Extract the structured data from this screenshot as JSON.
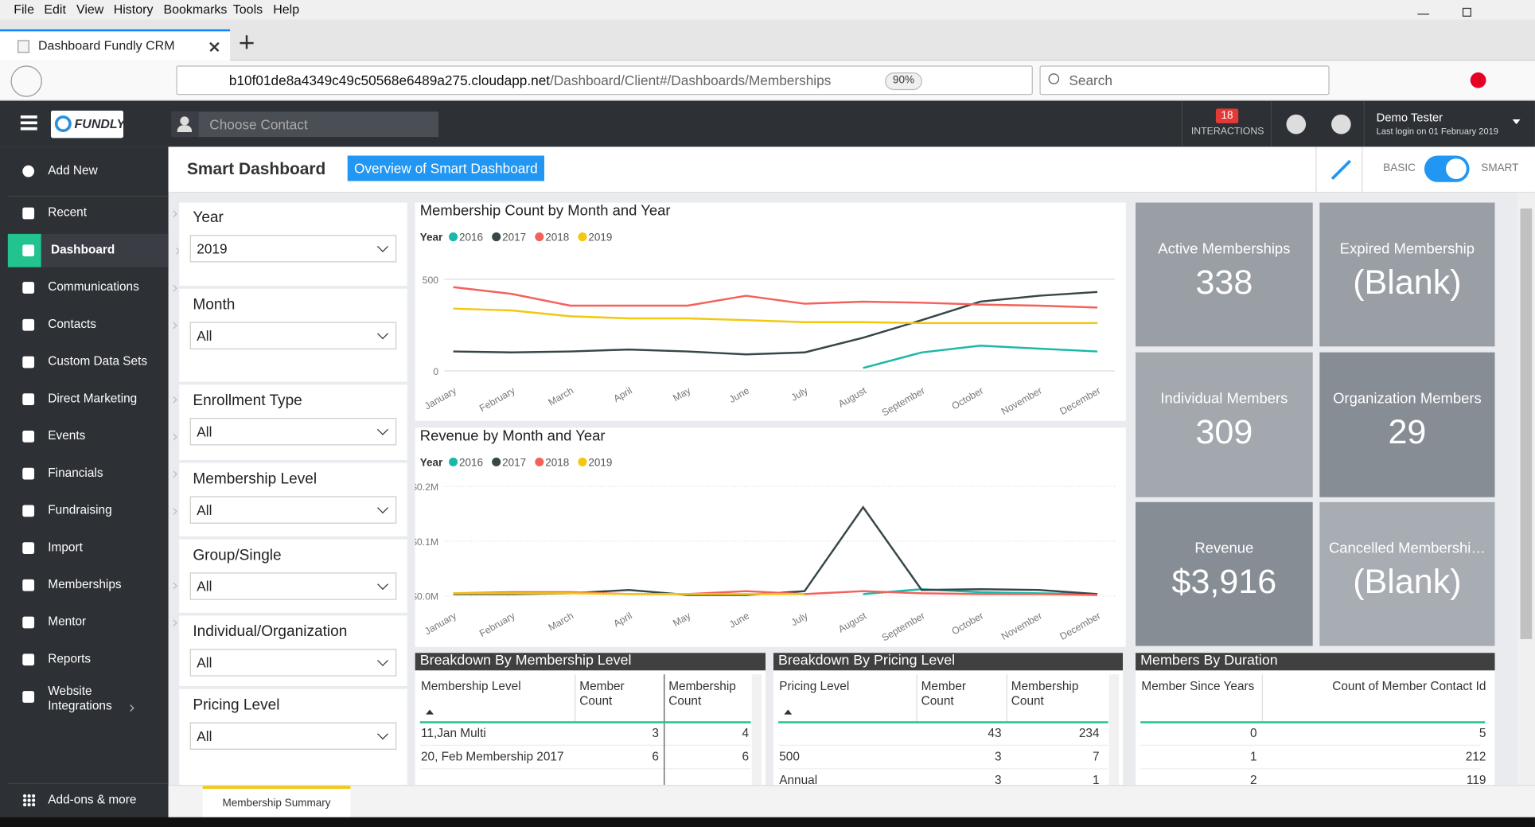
{
  "browser": {
    "menu": [
      "File",
      "Edit",
      "View",
      "History",
      "Bookmarks",
      "Tools",
      "Help"
    ],
    "tab": "Dashboard Fundly CRM",
    "url_host": "b10f01de8a4349c49c50568e6489a275.cloudapp.net",
    "url_path": "/Dashboard/Client#/Dashboards/Memberships",
    "zoom": "90%",
    "search": "Search"
  },
  "app_header": {
    "logo": "FUNDLY",
    "contact_placeholder": "Choose Contact",
    "interactions_count": 18,
    "interactions_label": "INTERACTIONS",
    "user": "Demo Tester",
    "last_login": "Last login on 01 February 2019"
  },
  "sidebar": {
    "items": [
      {
        "label": "Add New",
        "submenu": true
      },
      {
        "label": "Recent",
        "submenu": true
      },
      {
        "label": "Dashboard",
        "submenu": true
      },
      {
        "label": "Communications",
        "submenu": true
      },
      {
        "label": "Contacts",
        "submenu": true
      },
      {
        "label": "Custom Data Sets",
        "submenu": false
      },
      {
        "label": "Direct Marketing",
        "submenu": true
      },
      {
        "label": "Events",
        "submenu": true
      },
      {
        "label": "Financials",
        "submenu": true
      },
      {
        "label": "Fundraising",
        "submenu": true
      },
      {
        "label": "Import",
        "submenu": false
      },
      {
        "label": "Memberships",
        "submenu": true
      },
      {
        "label": "Mentor",
        "submenu": true
      },
      {
        "label": "Reports",
        "submenu": false
      },
      {
        "label": "Website Integrations",
        "submenu": true
      }
    ],
    "active": 2,
    "footer": "Add-ons & more"
  },
  "toolbar": {
    "title": "Smart Dashboard",
    "button": "Overview of Smart Dashboard",
    "basic": "BASIC",
    "smart": "SMART"
  },
  "filters": [
    {
      "label": "Year",
      "value": "2019"
    },
    {
      "label": "Month",
      "value": "All"
    },
    {
      "label": "Enrollment Type",
      "value": "All"
    },
    {
      "label": "Membership Level",
      "value": "All"
    },
    {
      "label": "Group/Single",
      "value": "All"
    },
    {
      "label": "Individual/Organization",
      "value": "All"
    },
    {
      "label": "Pricing Level",
      "value": "All"
    }
  ],
  "chart_data": [
    {
      "type": "line",
      "title": "Membership Count by Month and Year",
      "legend_title": "Year",
      "categories": [
        "January",
        "February",
        "March",
        "April",
        "May",
        "June",
        "July",
        "August",
        "September",
        "October",
        "November",
        "December"
      ],
      "series": [
        {
          "name": "2016",
          "color": "#1ab8a8",
          "values": [
            null,
            null,
            null,
            null,
            null,
            null,
            null,
            16,
            101,
            138,
            122,
            106
          ]
        },
        {
          "name": "2017",
          "color": "#374649",
          "values": [
            106,
            101,
            106,
            117,
            106,
            90,
            101,
            181,
            277,
            378,
            410,
            431
          ]
        },
        {
          "name": "2018",
          "color": "#f2625a",
          "values": [
            457,
            420,
            356,
            356,
            356,
            410,
            367,
            378,
            372,
            362,
            356,
            346
          ]
        },
        {
          "name": "2019",
          "color": "#f2c80f",
          "values": [
            340,
            330,
            298,
            287,
            287,
            277,
            266,
            266,
            261,
            261,
            261,
            261
          ]
        }
      ],
      "ylim": [
        0,
        550
      ],
      "yticks": [
        0,
        500
      ],
      "grid": true
    },
    {
      "type": "line",
      "title": "Revenue by Month and Year",
      "legend_title": "Year",
      "categories": [
        "January",
        "February",
        "March",
        "April",
        "May",
        "June",
        "July",
        "August",
        "September",
        "October",
        "November",
        "December"
      ],
      "series": [
        {
          "name": "2016",
          "color": "#1ab8a8",
          "values": [
            null,
            null,
            null,
            null,
            null,
            null,
            null,
            3600,
            12500,
            7000,
            5000,
            3600
          ]
        },
        {
          "name": "2017",
          "color": "#374649",
          "values": [
            3600,
            3600,
            5000,
            11000,
            2000,
            2000,
            9000,
            162000,
            11000,
            12500,
            11000,
            3600
          ]
        },
        {
          "name": "2018",
          "color": "#f2625a",
          "values": [
            5000,
            7000,
            7000,
            3600,
            3600,
            9000,
            3600,
            9000,
            5000,
            3600,
            3600,
            2000
          ]
        },
        {
          "name": "2019",
          "color": "#f2c80f",
          "values": [
            5000,
            5000,
            5000,
            3600,
            3600,
            3600,
            3600,
            null,
            null,
            null,
            null,
            null
          ]
        }
      ],
      "ylim": [
        0,
        200000
      ],
      "yticks": [
        {
          "value": 0,
          "label": "$0.0M"
        },
        {
          "value": 100000,
          "label": "$0.1M"
        },
        {
          "value": 200000,
          "label": "$0.2M"
        }
      ],
      "grid": true
    }
  ],
  "cards": [
    {
      "label": "Active Memberships",
      "value": "338"
    },
    {
      "label": "Expired Membership",
      "value": "(Blank)"
    },
    {
      "label": "Individual Members",
      "value": "309"
    },
    {
      "label": "Organization Members",
      "value": "29"
    },
    {
      "label": "Revenue",
      "value": "$3,916"
    },
    {
      "label": "Cancelled Membershi…",
      "value": "(Blank)"
    }
  ],
  "tables": [
    {
      "title": "Breakdown By Membership Level",
      "columns": [
        "Membership Level",
        "Member Count",
        "Membership Count"
      ],
      "rows": [
        [
          "11,Jan Multi",
          "3",
          "4"
        ],
        [
          "20, Feb Membership 2017",
          "6",
          "6"
        ]
      ]
    },
    {
      "title": "Breakdown By Pricing Level",
      "columns": [
        "Pricing Level",
        "Member Count",
        "Membership Count"
      ],
      "rows": [
        [
          null,
          "43",
          "234"
        ],
        [
          "500",
          "3",
          "7"
        ],
        [
          "Annual",
          "3",
          "1"
        ]
      ]
    },
    {
      "title": "Members By Duration",
      "columns": [
        "Member Since Years",
        "Count of Member Contact Id"
      ],
      "rows": [
        [
          "0",
          "5"
        ],
        [
          "1",
          "212"
        ],
        [
          "2",
          "119"
        ]
      ]
    }
  ],
  "footer_tab": "Membership Summary"
}
